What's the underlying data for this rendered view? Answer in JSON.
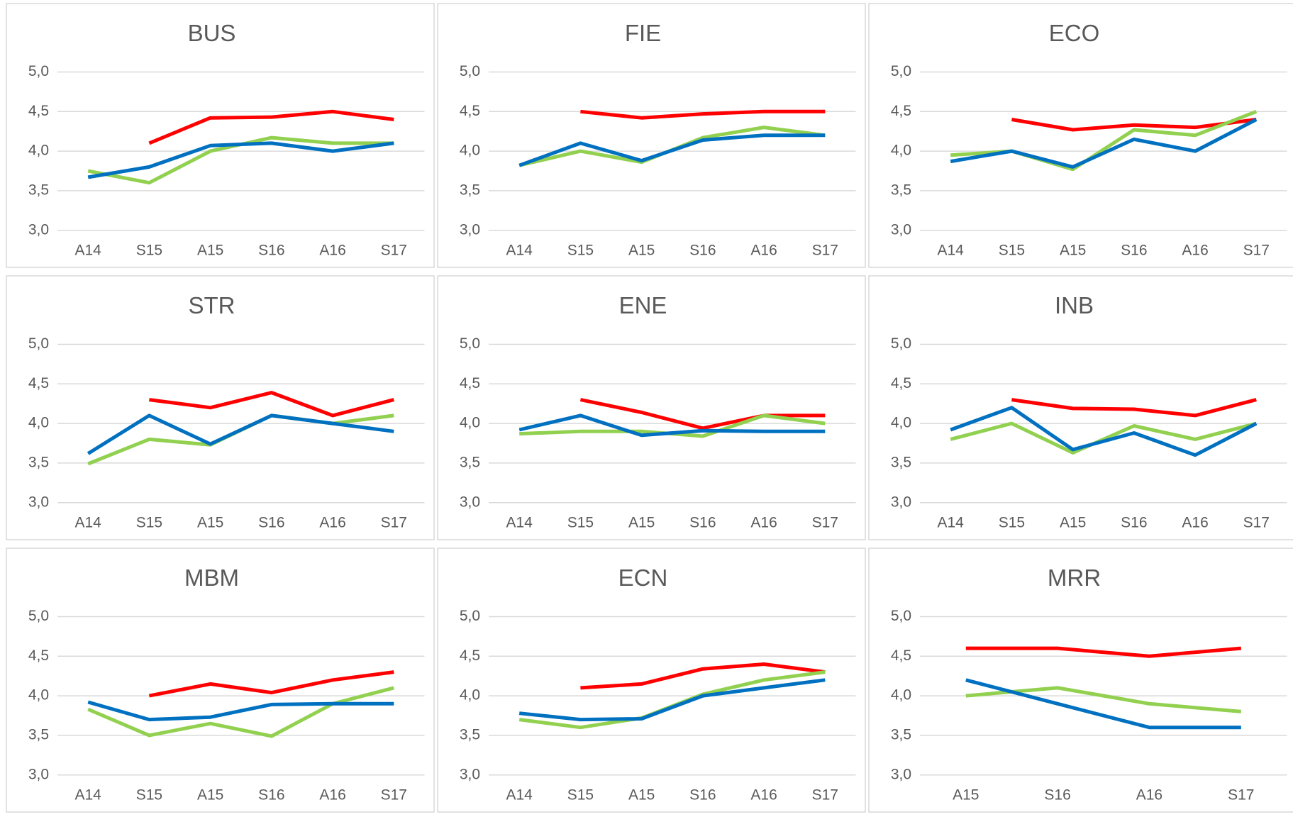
{
  "chart_data": [
    {
      "type": "line",
      "title": "BUS",
      "categories": [
        "A14",
        "S15",
        "A15",
        "S16",
        "A16",
        "S17"
      ],
      "ylim": [
        3,
        5
      ],
      "yticks": [
        {
          "value": 3,
          "label": "3,0"
        },
        {
          "value": 3.5,
          "label": "3,5"
        },
        {
          "value": 4,
          "label": "4,0"
        },
        {
          "value": 4.5,
          "label": "4,5"
        },
        {
          "value": 5,
          "label": "5,0"
        }
      ],
      "grid": true,
      "series": [
        {
          "color": "#ff0000",
          "values": [
            null,
            4.1,
            4.42,
            4.43,
            4.5,
            4.4
          ]
        },
        {
          "color": "#92d050",
          "values": [
            3.75,
            3.6,
            4.0,
            4.17,
            4.1,
            4.1
          ]
        },
        {
          "color": "#0070c0",
          "values": [
            3.67,
            3.8,
            4.07,
            4.1,
            4.0,
            4.1
          ]
        }
      ]
    },
    {
      "type": "line",
      "title": "FIE",
      "categories": [
        "A14",
        "S15",
        "A15",
        "S16",
        "A16",
        "S17"
      ],
      "ylim": [
        3,
        5
      ],
      "yticks": [
        {
          "value": 3,
          "label": "3,0"
        },
        {
          "value": 3.5,
          "label": "3,5"
        },
        {
          "value": 4,
          "label": "4,0"
        },
        {
          "value": 4.5,
          "label": "4,5"
        },
        {
          "value": 5,
          "label": "5,0"
        }
      ],
      "grid": true,
      "series": [
        {
          "color": "#ff0000",
          "values": [
            null,
            4.5,
            4.42,
            4.47,
            4.5,
            4.5
          ]
        },
        {
          "color": "#92d050",
          "values": [
            3.82,
            4.0,
            3.86,
            4.17,
            4.3,
            4.2
          ]
        },
        {
          "color": "#0070c0",
          "values": [
            3.82,
            4.1,
            3.88,
            4.14,
            4.2,
            4.2
          ]
        }
      ]
    },
    {
      "type": "line",
      "title": "ECO",
      "categories": [
        "A14",
        "S15",
        "A15",
        "S16",
        "A16",
        "S17"
      ],
      "ylim": [
        3,
        5
      ],
      "yticks": [
        {
          "value": 3,
          "label": "3,0"
        },
        {
          "value": 3.5,
          "label": "3,5"
        },
        {
          "value": 4,
          "label": "4,0"
        },
        {
          "value": 4.5,
          "label": "4,5"
        },
        {
          "value": 5,
          "label": "5,0"
        }
      ],
      "grid": true,
      "series": [
        {
          "color": "#ff0000",
          "values": [
            null,
            4.4,
            4.27,
            4.33,
            4.3,
            4.4
          ]
        },
        {
          "color": "#92d050",
          "values": [
            3.95,
            4.0,
            3.77,
            4.27,
            4.2,
            4.5
          ]
        },
        {
          "color": "#0070c0",
          "values": [
            3.87,
            4.0,
            3.8,
            4.15,
            4.0,
            4.4
          ]
        }
      ]
    },
    {
      "type": "line",
      "title": "STR",
      "categories": [
        "A14",
        "S15",
        "A15",
        "S16",
        "A16",
        "S17"
      ],
      "ylim": [
        3,
        5
      ],
      "yticks": [
        {
          "value": 3,
          "label": "3,0"
        },
        {
          "value": 3.5,
          "label": "3,5"
        },
        {
          "value": 4,
          "label": "4,0"
        },
        {
          "value": 4.5,
          "label": "4,5"
        },
        {
          "value": 5,
          "label": "5,0"
        }
      ],
      "grid": true,
      "series": [
        {
          "color": "#ff0000",
          "values": [
            null,
            4.3,
            4.2,
            4.39,
            4.1,
            4.3
          ]
        },
        {
          "color": "#92d050",
          "values": [
            3.49,
            3.8,
            3.73,
            4.1,
            4.0,
            4.1
          ]
        },
        {
          "color": "#0070c0",
          "values": [
            3.62,
            4.1,
            3.74,
            4.1,
            4.0,
            3.9
          ]
        }
      ]
    },
    {
      "type": "line",
      "title": "ENE",
      "categories": [
        "A14",
        "S15",
        "A15",
        "S16",
        "A16",
        "S17"
      ],
      "ylim": [
        3,
        5
      ],
      "yticks": [
        {
          "value": 3,
          "label": "3,0"
        },
        {
          "value": 3.5,
          "label": "3,5"
        },
        {
          "value": 4,
          "label": "4,0"
        },
        {
          "value": 4.5,
          "label": "4,5"
        },
        {
          "value": 5,
          "label": "5,0"
        }
      ],
      "grid": true,
      "series": [
        {
          "color": "#ff0000",
          "values": [
            null,
            4.3,
            4.14,
            3.94,
            4.1,
            4.1
          ]
        },
        {
          "color": "#92d050",
          "values": [
            3.87,
            3.9,
            3.9,
            3.84,
            4.1,
            4.0
          ]
        },
        {
          "color": "#0070c0",
          "values": [
            3.92,
            4.1,
            3.85,
            3.91,
            3.9,
            3.9
          ]
        }
      ]
    },
    {
      "type": "line",
      "title": "INB",
      "categories": [
        "A14",
        "S15",
        "A15",
        "S16",
        "A16",
        "S17"
      ],
      "ylim": [
        3,
        5
      ],
      "yticks": [
        {
          "value": 3,
          "label": "3,0"
        },
        {
          "value": 3.5,
          "label": "3,5"
        },
        {
          "value": 4,
          "label": "4,0"
        },
        {
          "value": 4.5,
          "label": "4,5"
        },
        {
          "value": 5,
          "label": "5,0"
        }
      ],
      "grid": true,
      "series": [
        {
          "color": "#ff0000",
          "values": [
            null,
            4.3,
            4.19,
            4.18,
            4.1,
            4.3
          ]
        },
        {
          "color": "#92d050",
          "values": [
            3.8,
            4.0,
            3.63,
            3.97,
            3.8,
            4.0
          ]
        },
        {
          "color": "#0070c0",
          "values": [
            3.92,
            4.2,
            3.67,
            3.88,
            3.6,
            4.0
          ]
        }
      ]
    },
    {
      "type": "line",
      "title": "MBM",
      "categories": [
        "A14",
        "S15",
        "A15",
        "S16",
        "A16",
        "S17"
      ],
      "ylim": [
        3,
        5
      ],
      "yticks": [
        {
          "value": 3,
          "label": "3,0"
        },
        {
          "value": 3.5,
          "label": "3,5"
        },
        {
          "value": 4,
          "label": "4,0"
        },
        {
          "value": 4.5,
          "label": "4,5"
        },
        {
          "value": 5,
          "label": "5,0"
        }
      ],
      "grid": true,
      "series": [
        {
          "color": "#ff0000",
          "values": [
            null,
            4.0,
            4.15,
            4.04,
            4.2,
            4.3
          ]
        },
        {
          "color": "#92d050",
          "values": [
            3.83,
            3.5,
            3.65,
            3.49,
            3.9,
            4.1
          ]
        },
        {
          "color": "#0070c0",
          "values": [
            3.92,
            3.7,
            3.73,
            3.89,
            3.9,
            3.9
          ]
        }
      ]
    },
    {
      "type": "line",
      "title": "ECN",
      "categories": [
        "A14",
        "S15",
        "A15",
        "S16",
        "A16",
        "S17"
      ],
      "ylim": [
        3,
        5
      ],
      "yticks": [
        {
          "value": 3,
          "label": "3,0"
        },
        {
          "value": 3.5,
          "label": "3,5"
        },
        {
          "value": 4,
          "label": "4,0"
        },
        {
          "value": 4.5,
          "label": "4,5"
        },
        {
          "value": 5,
          "label": "5,0"
        }
      ],
      "grid": true,
      "series": [
        {
          "color": "#ff0000",
          "values": [
            null,
            4.1,
            4.15,
            4.34,
            4.4,
            4.3
          ]
        },
        {
          "color": "#92d050",
          "values": [
            3.7,
            3.6,
            3.72,
            4.02,
            4.2,
            4.3
          ]
        },
        {
          "color": "#0070c0",
          "values": [
            3.78,
            3.7,
            3.71,
            4.0,
            4.1,
            4.2
          ]
        }
      ]
    },
    {
      "type": "line",
      "title": "MRR",
      "categories": [
        "A15",
        "S16",
        "A16",
        "S17"
      ],
      "ylim": [
        3,
        5
      ],
      "yticks": [
        {
          "value": 3,
          "label": "3,0"
        },
        {
          "value": 3.5,
          "label": "3,5"
        },
        {
          "value": 4,
          "label": "4,0"
        },
        {
          "value": 4.5,
          "label": "4,5"
        },
        {
          "value": 5,
          "label": "5,0"
        }
      ],
      "grid": true,
      "series": [
        {
          "color": "#ff0000",
          "values": [
            4.6,
            4.6,
            4.5,
            4.6
          ]
        },
        {
          "color": "#92d050",
          "values": [
            4.0,
            4.1,
            3.9,
            3.8
          ]
        },
        {
          "color": "#0070c0",
          "values": [
            4.2,
            3.9,
            3.6,
            3.6
          ]
        }
      ]
    }
  ]
}
